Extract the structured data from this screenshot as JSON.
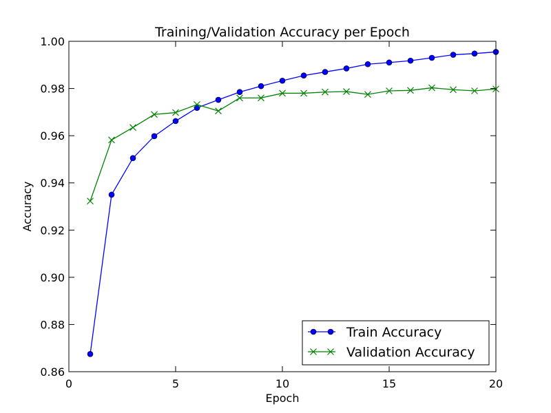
{
  "chart_data": {
    "type": "line",
    "title": "Training/Validation Accuracy per Epoch",
    "xlabel": "Epoch",
    "ylabel": "Accuracy",
    "xlim": [
      0,
      20
    ],
    "ylim": [
      0.86,
      1.0
    ],
    "xticks": [
      0,
      5,
      10,
      15,
      20
    ],
    "xtick_labels": [
      "0",
      "5",
      "10",
      "15",
      "20"
    ],
    "yticks": [
      0.86,
      0.88,
      0.9,
      0.92,
      0.94,
      0.96,
      0.98,
      1.0
    ],
    "ytick_labels": [
      "0.86",
      "0.88",
      "0.90",
      "0.92",
      "0.94",
      "0.96",
      "0.98",
      "1.00"
    ],
    "grid": false,
    "legend_position": "lower-right",
    "x": [
      1,
      2,
      3,
      4,
      5,
      6,
      7,
      8,
      9,
      10,
      11,
      12,
      13,
      14,
      15,
      16,
      17,
      18,
      19,
      20
    ],
    "series": [
      {
        "name": "Train Accuracy",
        "color": "#0000ff",
        "marker": "circle",
        "values": [
          0.8675,
          0.935,
          0.9505,
          0.9598,
          0.9662,
          0.9718,
          0.9752,
          0.9785,
          0.981,
          0.9833,
          0.9855,
          0.987,
          0.9885,
          0.9903,
          0.991,
          0.9918,
          0.993,
          0.9943,
          0.9948,
          0.9955
        ]
      },
      {
        "name": "Validation Accuracy",
        "color": "#008000",
        "marker": "x",
        "values": [
          0.9323,
          0.9582,
          0.9635,
          0.969,
          0.9698,
          0.9732,
          0.9705,
          0.976,
          0.976,
          0.978,
          0.978,
          0.9785,
          0.9787,
          0.9775,
          0.979,
          0.9792,
          0.9803,
          0.9795,
          0.979,
          0.9798
        ]
      }
    ]
  }
}
